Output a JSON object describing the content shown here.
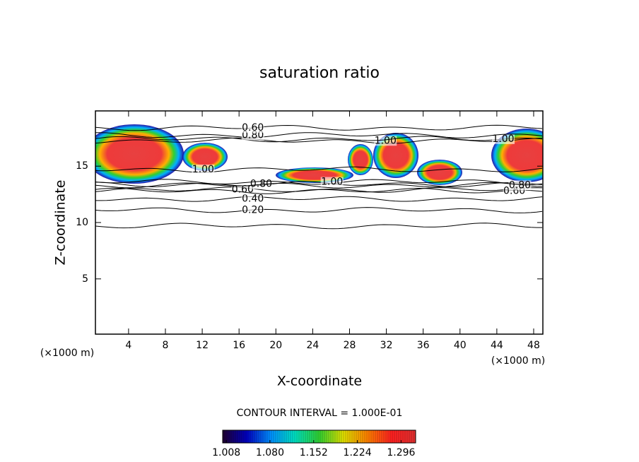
{
  "chart_data": {
    "type": "contour",
    "title": "saturation ratio",
    "xlabel": "X-coordinate",
    "ylabel": "Z-coordinate",
    "xunit": "(×1000 m)",
    "yunit": "(×1000 m)",
    "xlim": [
      0.4,
      49
    ],
    "ylim": [
      0.1,
      19.9
    ],
    "xticks": [
      4,
      8,
      12,
      16,
      20,
      24,
      28,
      32,
      36,
      40,
      44,
      48
    ],
    "yticks": [
      5,
      10,
      15
    ],
    "contours": [
      {
        "level": 0.1,
        "y": 9.7
      },
      {
        "level": 0.2,
        "label": "0.20",
        "x": 17.5,
        "y": 11.1
      },
      {
        "level": 0.4,
        "label": "0.40",
        "x": 17.5,
        "y": 12.1
      },
      {
        "level": 0.6,
        "label": "0.60",
        "x": 16.4,
        "y": 12.9
      },
      {
        "level": 0.6,
        "label": "0.60",
        "x": 45.9,
        "y": 12.8
      },
      {
        "level": 0.8,
        "label": "0.80",
        "x": 18.4,
        "y": 13.4
      },
      {
        "level": 0.8,
        "label": "0.80",
        "x": 46.5,
        "y": 13.3
      },
      {
        "level": 1.0,
        "label": "1.00",
        "x": 26.1,
        "y": 13.6
      },
      {
        "level": 1.0,
        "label": "1.00",
        "x": 12.1,
        "y": 14.7
      },
      {
        "level": 1.0,
        "label": "1.00",
        "x": 31.9,
        "y": 17.25
      },
      {
        "level": 1.0,
        "label": "1.00",
        "x": 44.7,
        "y": 17.4
      },
      {
        "level": 0.8,
        "label": "0.80",
        "x": 17.5,
        "y": 17.75
      },
      {
        "level": 0.6,
        "label": "0.60",
        "x": 17.5,
        "y": 18.4
      }
    ],
    "colorbar": {
      "title": "CONTOUR INTERVAL = 1.000E-01",
      "clim": [
        1.002,
        1.32
      ],
      "ticks": [
        {
          "value": 1.008,
          "label": "1.008"
        },
        {
          "value": 1.08,
          "label": "1.080"
        },
        {
          "value": 1.152,
          "label": "1.152"
        },
        {
          "value": 1.224,
          "label": "1.224"
        },
        {
          "value": 1.296,
          "label": "1.296"
        }
      ],
      "colormap": [
        "#200030",
        "#0000c0",
        "#0090ff",
        "#00e0c0",
        "#30d030",
        "#e0e000",
        "#ff8000",
        "#ff2020",
        "#e03030"
      ]
    }
  }
}
